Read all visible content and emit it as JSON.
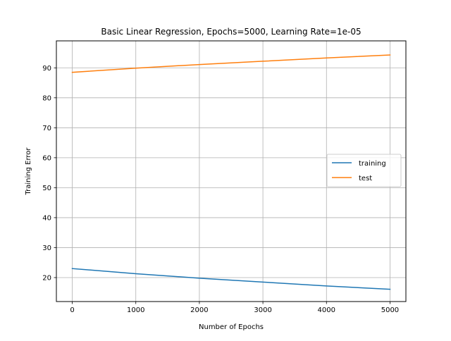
{
  "chart_data": {
    "type": "line",
    "title": "Basic Linear Regression, Epochs=5000, Learning Rate=1e-05",
    "xlabel": "Number of Epochs",
    "ylabel": "Training Error",
    "xlim": [
      -250,
      5250
    ],
    "ylim": [
      12,
      99
    ],
    "xticks": [
      0,
      1000,
      2000,
      3000,
      4000,
      5000
    ],
    "yticks": [
      20,
      30,
      40,
      50,
      60,
      70,
      80,
      90
    ],
    "grid": true,
    "legend_position": "center-right",
    "series": [
      {
        "name": "training",
        "color": "#1f77b4",
        "x": [
          0,
          1000,
          2000,
          3000,
          4000,
          5000
        ],
        "y": [
          23.0,
          21.3,
          19.8,
          18.5,
          17.2,
          16.1
        ]
      },
      {
        "name": "test",
        "color": "#ff7f0e",
        "x": [
          0,
          1000,
          2000,
          3000,
          4000,
          5000
        ],
        "y": [
          88.5,
          89.9,
          91.1,
          92.2,
          93.3,
          94.3
        ]
      }
    ]
  }
}
